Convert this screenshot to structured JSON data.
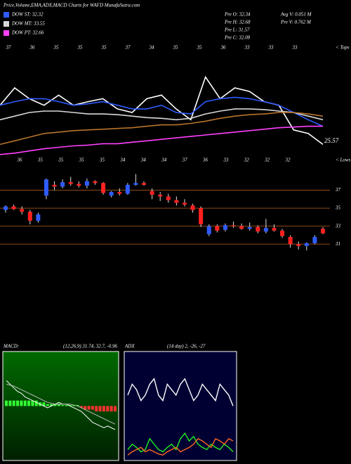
{
  "title": "Price,Volume,EMA,ADX,MACD Charts for WAFD MunafaSutra.com",
  "stats": [
    "Pre  O: 32.34",
    "Pre  H: 32.68",
    "Pre  L: 31.57",
    "Pre  C: 32.08",
    "Avg V: 0.051 M",
    "Pre  V: 0.762 M"
  ],
  "chart_data": [
    {
      "type": "line",
      "ylim": [
        24,
        40
      ],
      "end_label": "25.57",
      "tops_label": "< Tops",
      "lows_label": "< Lows",
      "tops": [
        37,
        36,
        35,
        35,
        35,
        37,
        34,
        35,
        35,
        36,
        33,
        33,
        33
      ],
      "lows": [
        36,
        35,
        35,
        35,
        35,
        34,
        34,
        34,
        37,
        36,
        33,
        32,
        32,
        32
      ],
      "series": [
        {
          "color": "#ffffff",
          "values": [
            31.3,
            33.7,
            32.2,
            31.3,
            32.7,
            31.3,
            31.8,
            32.2,
            30.8,
            30.3,
            32.2,
            32.7,
            30.8,
            29.3,
            35.2,
            32.2,
            33.7,
            33.2,
            31.8,
            31.3,
            27.9,
            27.4,
            25.9
          ]
        },
        {
          "name": "DOW ST: 32.32",
          "color": "#2f5bff",
          "values": [
            31.3,
            31.8,
            32.2,
            32.2,
            31.8,
            31.3,
            31.5,
            31.8,
            31.3,
            30.8,
            30.8,
            31.3,
            30.3,
            30.1,
            31.8,
            32.2,
            32.4,
            32.2,
            31.8,
            31.3,
            30.3,
            29.3,
            28.4
          ]
        },
        {
          "name": "DOW MT: 33.55",
          "color": "#d8d8d8",
          "values": [
            29.3,
            29.8,
            30.3,
            30.5,
            30.5,
            30.3,
            30.1,
            30.1,
            30.0,
            29.8,
            29.6,
            29.5,
            29.3,
            29.5,
            30.1,
            30.5,
            30.8,
            30.8,
            30.7,
            30.5,
            30.3,
            29.8,
            29.3
          ]
        },
        {
          "name": "DOW PT: 32.66",
          "color": "#ff40ff",
          "values": [
            24.5,
            24.7,
            25.0,
            25.3,
            25.5,
            25.7,
            25.8,
            26.0,
            26.0,
            26.2,
            26.4,
            26.6,
            26.8,
            27.0,
            27.2,
            27.4,
            27.6,
            27.8,
            28.0,
            28.2,
            28.3,
            28.4,
            28.4
          ]
        },
        {
          "color": "#b8732a",
          "values": [
            25.9,
            26.4,
            26.9,
            27.4,
            27.6,
            27.8,
            27.9,
            28.0,
            28.1,
            28.2,
            28.4,
            28.6,
            28.6,
            28.8,
            29.1,
            29.5,
            29.8,
            30.0,
            30.1,
            30.3,
            30.3,
            30.1,
            29.8
          ]
        }
      ]
    },
    {
      "type": "candlestick",
      "ylim": [
        30,
        39
      ],
      "yticks": [
        31,
        33,
        35,
        37
      ],
      "up_color": "#2f5bff",
      "down_color": "#ff2020",
      "candles": [
        [
          34.8,
          35.3,
          34.5,
          35.2
        ],
        [
          35.2,
          35.4,
          34.8,
          34.9
        ],
        [
          34.9,
          35.2,
          34.3,
          34.6
        ],
        [
          34.6,
          34.8,
          33.2,
          33.6
        ],
        [
          33.6,
          34.5,
          33.4,
          34.3
        ],
        [
          36.4,
          38.3,
          36.0,
          38.2
        ],
        [
          37.6,
          38.0,
          37.0,
          37.4
        ],
        [
          37.4,
          38.2,
          37.2,
          37.9
        ],
        [
          37.9,
          38.5,
          37.5,
          37.7
        ],
        [
          37.7,
          38.0,
          37.3,
          37.5
        ],
        [
          37.5,
          38.3,
          37.2,
          38.0
        ],
        [
          38.0,
          38.1,
          37.6,
          37.8
        ],
        [
          37.8,
          37.9,
          36.5,
          36.7
        ],
        [
          36.4,
          36.9,
          36.2,
          36.8
        ],
        [
          36.8,
          37.2,
          36.4,
          36.6
        ],
        [
          36.6,
          37.8,
          36.5,
          37.6
        ],
        [
          37.6,
          38.8,
          37.5,
          37.8
        ],
        [
          37.8,
          38.0,
          37.5,
          37.6
        ],
        [
          36.9,
          37.2,
          36.0,
          36.5
        ],
        [
          36.5,
          36.8,
          35.8,
          36.3
        ],
        [
          36.3,
          36.6,
          35.6,
          35.9
        ],
        [
          35.9,
          36.3,
          35.3,
          35.6
        ],
        [
          35.6,
          36.0,
          35.2,
          35.4
        ],
        [
          35.3,
          35.5,
          34.5,
          34.8
        ],
        [
          35.0,
          35.2,
          32.9,
          33.2
        ],
        [
          32.1,
          33.2,
          31.9,
          33.0
        ],
        [
          33.0,
          33.2,
          32.3,
          32.5
        ],
        [
          32.6,
          33.3,
          32.4,
          33.1
        ],
        [
          33.1,
          33.5,
          32.8,
          33.0
        ],
        [
          33.0,
          33.3,
          32.6,
          32.7
        ],
        [
          32.7,
          33.4,
          32.5,
          32.9
        ],
        [
          32.9,
          33.1,
          32.2,
          32.4
        ],
        [
          32.4,
          33.8,
          32.2,
          32.8
        ],
        [
          32.8,
          33.2,
          32.4,
          32.5
        ],
        [
          32.5,
          32.7,
          31.7,
          31.9
        ],
        [
          31.8,
          32.0,
          30.6,
          31.0
        ],
        [
          31.0,
          31.3,
          30.4,
          30.8
        ],
        [
          30.8,
          31.2,
          30.3,
          31.1
        ],
        [
          31.1,
          32.0,
          31.0,
          31.8
        ],
        [
          32.7,
          32.9,
          32.1,
          32.2
        ]
      ]
    },
    {
      "type": "macd",
      "title": "MACD:",
      "subtitle": "(12,26,9) 31.74, 32.7, -0.96",
      "ylim": [
        -3,
        3
      ],
      "pos_color": "#33ff33",
      "neg_color": "#ff3030",
      "series": [
        {
          "color": "#ffffff",
          "values": [
            1.4,
            1.2,
            1.0,
            0.8,
            0.7,
            0.5,
            0.4,
            0.3,
            0.2,
            0.1,
            0.0,
            -0.1,
            0.0,
            0.1,
            0.2,
            0.1,
            0.1,
            0.0,
            -0.1,
            -0.2,
            -0.3,
            -0.5,
            -0.7,
            -0.9,
            -1.0,
            -1.1,
            -1.2,
            -1.1,
            -1.2,
            -1.3
          ]
        },
        {
          "color": "#bbbbbb",
          "values": [
            1.2,
            1.15,
            1.1,
            1.0,
            0.9,
            0.8,
            0.7,
            0.6,
            0.5,
            0.4,
            0.3,
            0.2,
            0.15,
            0.1,
            0.1,
            0.1,
            0.1,
            0.1,
            0.05,
            0.0,
            -0.1,
            -0.2,
            -0.3,
            -0.4,
            -0.5,
            -0.6,
            -0.7,
            -0.8,
            -0.9,
            -1.0
          ]
        }
      ],
      "histogram": [
        0.3,
        0.3,
        0.3,
        0.3,
        0.3,
        0.3,
        0.3,
        0.3,
        0.3,
        0.2,
        0.2,
        0.1,
        0.1,
        0.1,
        0.1,
        0.05,
        0.05,
        0.05,
        0.05,
        0.05,
        -0.1,
        -0.2,
        -0.2,
        -0.2,
        -0.3,
        -0.3,
        -0.3,
        -0.3,
        -0.3,
        -0.3
      ]
    },
    {
      "type": "adx",
      "title": "ADX",
      "subtitle": "(14  day) 2, -26, -27",
      "ylim": [
        0,
        100
      ],
      "series": [
        {
          "color": "#ffffff",
          "values": [
            60,
            70,
            65,
            55,
            60,
            70,
            75,
            60,
            55,
            70,
            65,
            60,
            70,
            75,
            65,
            55,
            60,
            70,
            65,
            60,
            55,
            70,
            65,
            60,
            50
          ]
        },
        {
          "color": "#22ee22",
          "values": [
            10,
            15,
            12,
            8,
            10,
            20,
            15,
            10,
            8,
            12,
            15,
            10,
            20,
            25,
            18,
            22,
            15,
            12,
            10,
            15,
            12,
            10,
            15,
            12,
            8
          ]
        },
        {
          "color": "#ff6a20",
          "values": [
            5,
            8,
            10,
            12,
            8,
            10,
            8,
            6,
            5,
            8,
            10,
            12,
            8,
            10,
            12,
            15,
            20,
            18,
            15,
            12,
            20,
            18,
            15,
            20,
            18
          ]
        }
      ]
    }
  ]
}
